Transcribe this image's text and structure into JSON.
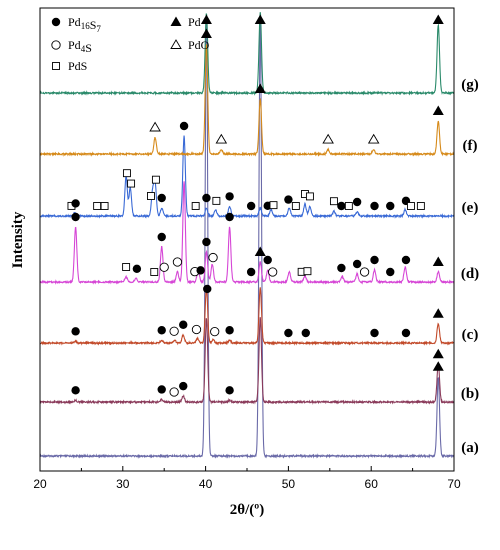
{
  "chart_data": {
    "type": "line",
    "xlabel": "2θ/(º)",
    "ylabel": "Intensity",
    "xlim": [
      20,
      70
    ],
    "xticks": [
      20,
      30,
      40,
      50,
      60,
      70
    ],
    "xtick_labels": [
      "20",
      "30",
      "40",
      "50",
      "60",
      "70"
    ],
    "legend": [
      {
        "marker": "filled-circle",
        "label": "Pd16S7"
      },
      {
        "marker": "filled-triangle",
        "label": "Pd"
      },
      {
        "marker": "open-circle",
        "label": "Pd4S"
      },
      {
        "marker": "open-triangle",
        "label": "PdO"
      },
      {
        "marker": "open-square",
        "label": "PdS"
      }
    ],
    "series": [
      {
        "label": "(a)",
        "color": "#6a6aa8",
        "peaks": [
          [
            40.1,
            1.0
          ],
          [
            46.6,
            1.0
          ],
          [
            68.1,
            0.18
          ]
        ],
        "markers": [
          {
            "type": "filled-triangle",
            "x": 68.1
          }
        ]
      },
      {
        "label": "(b)",
        "color": "#8a3a5a",
        "peaks": [
          [
            24.3,
            0.02
          ],
          [
            34.7,
            0.03
          ],
          [
            37.3,
            0.07
          ],
          [
            40.1,
            1.0
          ],
          [
            42.9,
            0.02
          ],
          [
            46.6,
            1.0
          ],
          [
            68.1,
            0.45
          ]
        ],
        "markers": [
          {
            "type": "filled-circle",
            "x": 24.3
          },
          {
            "type": "filled-circle",
            "x": 34.7
          },
          {
            "type": "open-circle",
            "x": 36.2
          },
          {
            "type": "filled-circle",
            "x": 37.3
          },
          {
            "type": "filled-circle",
            "x": 42.9
          },
          {
            "type": "filled-triangle",
            "x": 68.1
          }
        ]
      },
      {
        "label": "(c)",
        "color": "#c24a2a",
        "peaks": [
          [
            24.3,
            0.03
          ],
          [
            34.7,
            0.05
          ],
          [
            36.3,
            0.04
          ],
          [
            37.3,
            0.15
          ],
          [
            39.0,
            0.08
          ],
          [
            40.1,
            1.0
          ],
          [
            40.9,
            0.06
          ],
          [
            42.9,
            0.05
          ],
          [
            46.6,
            1.0
          ],
          [
            68.1,
            0.35
          ]
        ],
        "markers": [
          {
            "type": "filled-circle",
            "x": 24.3
          },
          {
            "type": "filled-circle",
            "x": 34.7
          },
          {
            "type": "open-circle",
            "x": 36.2
          },
          {
            "type": "filled-circle",
            "x": 37.3
          },
          {
            "type": "open-circle",
            "x": 38.9
          },
          {
            "type": "filled-circle",
            "x": 40.2
          },
          {
            "type": "open-circle",
            "x": 41.1
          },
          {
            "type": "filled-circle",
            "x": 42.9
          },
          {
            "type": "filled-circle",
            "x": 50.0
          },
          {
            "type": "filled-circle",
            "x": 52.1
          },
          {
            "type": "filled-circle",
            "x": 60.4
          },
          {
            "type": "filled-circle",
            "x": 64.2
          },
          {
            "type": "filled-triangle",
            "x": 68.1
          }
        ]
      },
      {
        "label": "(d)",
        "color": "#d646d6",
        "peaks": [
          [
            24.3,
            0.55
          ],
          [
            30.4,
            0.05
          ],
          [
            31.6,
            0.04
          ],
          [
            34.7,
            0.35
          ],
          [
            36.6,
            0.1
          ],
          [
            37.4,
            1.0
          ],
          [
            39.1,
            0.12
          ],
          [
            40.1,
            0.3
          ],
          [
            40.8,
            0.18
          ],
          [
            42.9,
            0.55
          ],
          [
            46.6,
            0.2
          ],
          [
            47.5,
            0.12
          ],
          [
            50.1,
            0.1
          ],
          [
            52.0,
            0.06
          ],
          [
            56.5,
            0.05
          ],
          [
            58.3,
            0.08
          ],
          [
            60.4,
            0.12
          ],
          [
            64.1,
            0.15
          ],
          [
            68.1,
            0.1
          ]
        ],
        "markers": [
          {
            "type": "filled-circle",
            "x": 24.3
          },
          {
            "type": "open-square",
            "x": 30.4
          },
          {
            "type": "filled-circle",
            "x": 31.7
          },
          {
            "type": "open-square",
            "x": 33.8
          },
          {
            "type": "filled-circle",
            "x": 34.7
          },
          {
            "type": "open-circle",
            "x": 35.0
          },
          {
            "type": "open-circle",
            "x": 36.6
          },
          {
            "type": "open-circle",
            "x": 38.7
          },
          {
            "type": "filled-circle",
            "x": 39.4
          },
          {
            "type": "filled-circle",
            "x": 40.1
          },
          {
            "type": "open-circle",
            "x": 40.9
          },
          {
            "type": "filled-circle",
            "x": 42.9
          },
          {
            "type": "filled-circle",
            "x": 45.5
          },
          {
            "type": "filled-triangle",
            "x": 46.6
          },
          {
            "type": "filled-circle",
            "x": 47.5
          },
          {
            "type": "open-circle",
            "x": 48.1
          },
          {
            "type": "open-square",
            "x": 51.6
          },
          {
            "type": "open-square",
            "x": 52.3
          },
          {
            "type": "filled-circle",
            "x": 56.4
          },
          {
            "type": "filled-circle",
            "x": 58.3
          },
          {
            "type": "open-circle",
            "x": 59.2
          },
          {
            "type": "filled-circle",
            "x": 60.4
          },
          {
            "type": "filled-circle",
            "x": 62.3
          },
          {
            "type": "filled-circle",
            "x": 64.2
          },
          {
            "type": "filled-triangle",
            "x": 68.1
          }
        ]
      },
      {
        "label": "(e)",
        "color": "#3a6ad6",
        "peaks": [
          [
            24.2,
            0.04
          ],
          [
            30.4,
            0.5
          ],
          [
            30.9,
            0.35
          ],
          [
            33.6,
            0.3
          ],
          [
            33.9,
            0.4
          ],
          [
            34.7,
            0.1
          ],
          [
            37.4,
            1.0
          ],
          [
            40.1,
            0.1
          ],
          [
            41.2,
            0.08
          ],
          [
            42.9,
            0.12
          ],
          [
            46.6,
            0.1
          ],
          [
            47.9,
            0.08
          ],
          [
            50.1,
            0.1
          ],
          [
            52.0,
            0.15
          ],
          [
            52.6,
            0.12
          ],
          [
            55.5,
            0.06
          ],
          [
            58.3,
            0.05
          ],
          [
            64.1,
            0.08
          ]
        ],
        "markers": [
          {
            "type": "open-square",
            "x": 23.8
          },
          {
            "type": "filled-circle",
            "x": 24.3
          },
          {
            "type": "open-square",
            "x": 26.9
          },
          {
            "type": "open-square",
            "x": 27.8
          },
          {
            "type": "open-square",
            "x": 30.5
          },
          {
            "type": "open-square",
            "x": 31.0
          },
          {
            "type": "open-square",
            "x": 33.4
          },
          {
            "type": "open-square",
            "x": 34.0
          },
          {
            "type": "filled-circle",
            "x": 34.7
          },
          {
            "type": "filled-circle",
            "x": 37.4
          },
          {
            "type": "open-square",
            "x": 38.8
          },
          {
            "type": "filled-circle",
            "x": 40.1
          },
          {
            "type": "open-square",
            "x": 41.3
          },
          {
            "type": "filled-circle",
            "x": 42.9
          },
          {
            "type": "filled-circle",
            "x": 45.5
          },
          {
            "type": "filled-circle",
            "x": 47.5
          },
          {
            "type": "open-square",
            "x": 48.2
          },
          {
            "type": "filled-circle",
            "x": 50.0
          },
          {
            "type": "open-square",
            "x": 50.9
          },
          {
            "type": "open-square",
            "x": 52.0
          },
          {
            "type": "open-square",
            "x": 52.6
          },
          {
            "type": "open-square",
            "x": 55.5
          },
          {
            "type": "filled-circle",
            "x": 56.4
          },
          {
            "type": "open-square",
            "x": 57.3
          },
          {
            "type": "filled-circle",
            "x": 58.3
          },
          {
            "type": "filled-circle",
            "x": 60.4
          },
          {
            "type": "filled-circle",
            "x": 62.3
          },
          {
            "type": "filled-circle",
            "x": 64.2
          },
          {
            "type": "open-square",
            "x": 64.8
          },
          {
            "type": "open-square",
            "x": 66.0
          }
        ]
      },
      {
        "label": "(f)",
        "color": "#d68a1a",
        "peaks": [
          [
            33.9,
            0.15
          ],
          [
            40.1,
            1.0
          ],
          [
            41.9,
            0.04
          ],
          [
            46.6,
            0.5
          ],
          [
            54.8,
            0.04
          ],
          [
            60.3,
            0.04
          ],
          [
            68.1,
            0.3
          ]
        ],
        "markers": [
          {
            "type": "open-triangle",
            "x": 33.9
          },
          {
            "type": "filled-triangle",
            "x": 40.1
          },
          {
            "type": "open-triangle",
            "x": 41.9
          },
          {
            "type": "filled-triangle",
            "x": 46.6
          },
          {
            "type": "open-triangle",
            "x": 54.8
          },
          {
            "type": "open-triangle",
            "x": 60.3
          },
          {
            "type": "filled-triangle",
            "x": 68.1
          }
        ]
      },
      {
        "label": "(g)",
        "color": "#2a8a6a",
        "peaks": [
          [
            40.1,
            1.0
          ],
          [
            46.6,
            1.0
          ],
          [
            68.1,
            0.85
          ]
        ],
        "markers": [
          {
            "type": "filled-triangle",
            "x": 40.1
          },
          {
            "type": "filled-triangle",
            "x": 46.6
          },
          {
            "type": "filled-triangle",
            "x": 68.1
          }
        ]
      }
    ]
  }
}
